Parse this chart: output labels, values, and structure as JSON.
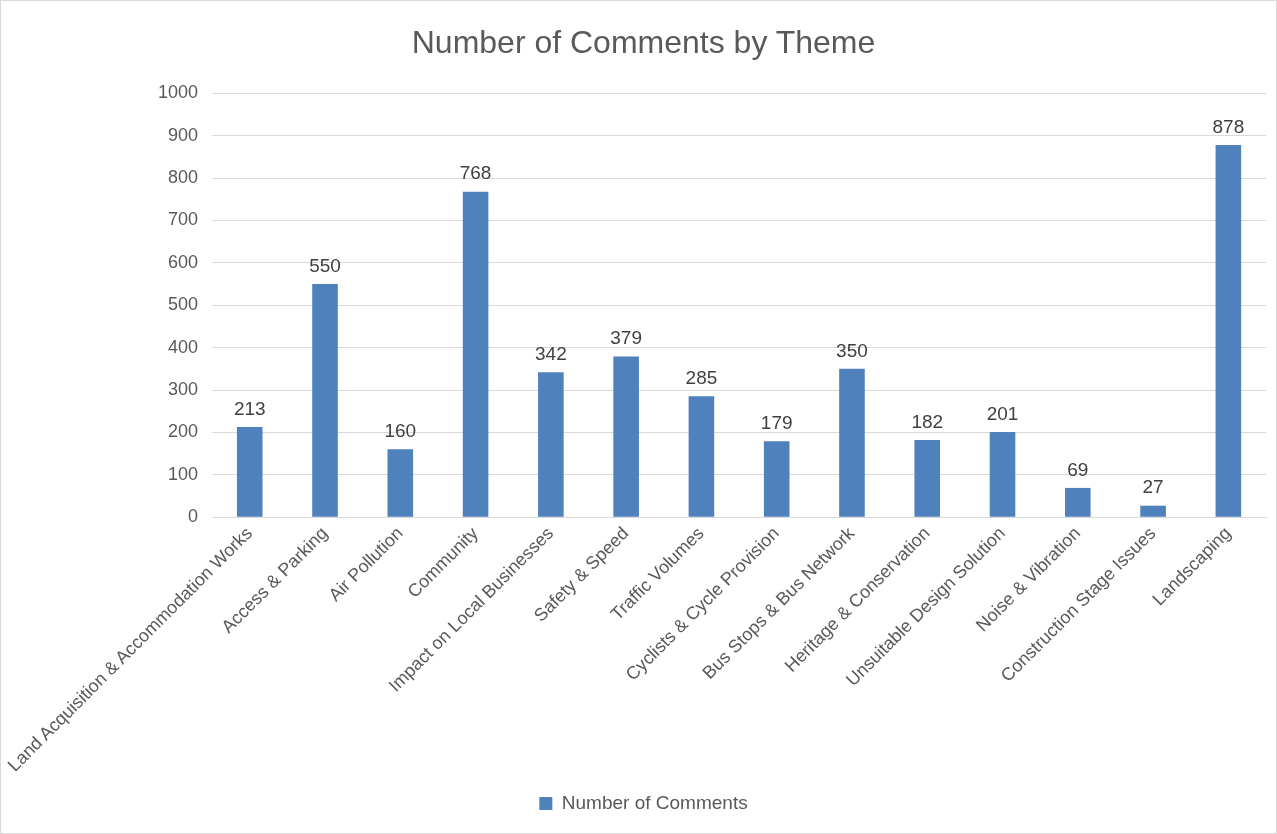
{
  "chart_data": {
    "type": "bar",
    "title": "Number of Comments by Theme",
    "categories": [
      "Land Acquisition & Accommodation Works",
      "Access & Parking",
      "Air Pollution",
      "Community",
      "Impact on Local Businesses",
      "Safety & Speed",
      "Traffic Volumes",
      "Cyclists & Cycle Provision",
      "Bus Stops & Bus Network",
      "Heritage & Conservation",
      "Unsuitable Design Solution",
      "Noise & Vibration",
      "Construction Stage Issues",
      "Landscaping"
    ],
    "series": [
      {
        "name": "Number of Comments",
        "color": "#4f81bd",
        "values": [
          213,
          550,
          160,
          768,
          342,
          379,
          285,
          179,
          350,
          182,
          201,
          69,
          27,
          878
        ]
      }
    ],
    "ylim": [
      0,
      1000
    ],
    "yticks": [
      0,
      100,
      200,
      300,
      400,
      500,
      600,
      700,
      800,
      900,
      1000
    ],
    "grid": "y",
    "legend": "bottom",
    "data_labels": true
  }
}
